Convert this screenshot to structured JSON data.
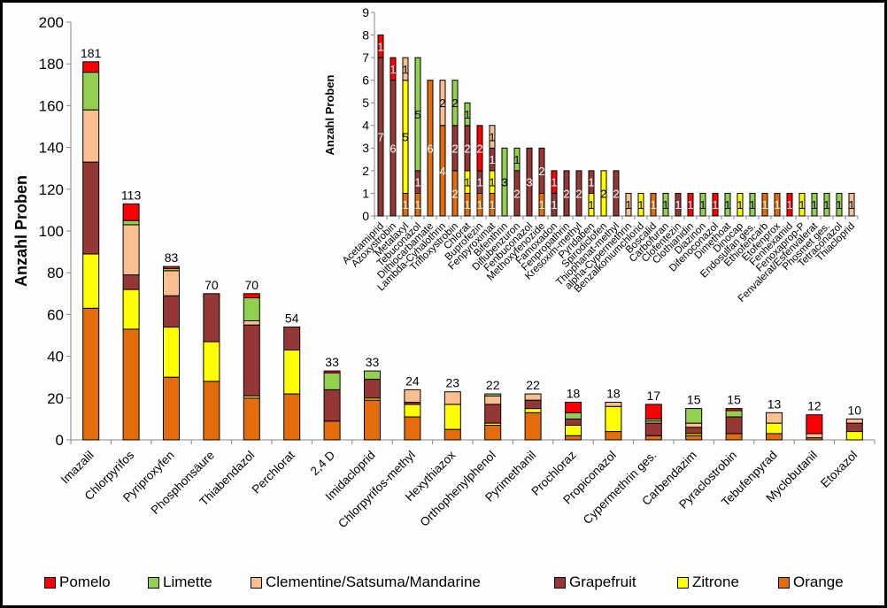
{
  "colors": {
    "Pomelo": "#ff0000",
    "Limette": "#92d050",
    "Clementine/Satsuma/Mandarine": "#fabf8f",
    "Grapefruit": "#953735",
    "Zitrone": "#ffff00",
    "Orange": "#e46c0a"
  },
  "legend": {
    "placement": "bottom",
    "entries": [
      "Pomelo",
      "Limette",
      "Clementine/Satsuma/Mandarine",
      "Grapefruit",
      "Zitrone",
      "Orange"
    ]
  },
  "chart_data": [
    {
      "type": "bar",
      "stacked": true,
      "title": "",
      "xlabel": "",
      "ylabel": "Anzahl Proben",
      "ylim": [
        0,
        200
      ],
      "yticks": [
        "0",
        "20",
        "40",
        "60",
        "80",
        "100",
        "120",
        "140",
        "160",
        "180",
        "200"
      ],
      "grid": false,
      "categories": [
        "Imazalil",
        "Chlorpyrifos",
        "Pyriproxyfen",
        "Phosphonsäure",
        "Thiabendazol",
        "Perchlorat",
        "2,4 D",
        "Imidacloprid",
        "Chlorpyrifos-methyl",
        "Hexythiazox",
        "Orthophenylphenol",
        "Pyrimethanil",
        "Prochloraz",
        "Propiconazol",
        "Cypermethrin ges.",
        "Carbendazim",
        "Pyraclostrobin",
        "Tebufenpyrad",
        "Myclobutanil",
        "Etoxazol"
      ],
      "totals": [
        "181",
        "113",
        "83",
        "70",
        "70",
        "54",
        "33",
        "33",
        "24",
        "23",
        "22",
        "22",
        "18",
        "18",
        "17",
        "15",
        "15",
        "13",
        "12",
        "10"
      ],
      "series": [
        {
          "name": "Orange",
          "values": [
            63,
            53,
            30,
            28,
            20,
            22,
            9,
            19,
            11,
            5,
            7,
            13,
            2,
            4,
            2,
            2,
            3,
            3,
            1,
            0
          ]
        },
        {
          "name": "Zitrone",
          "values": [
            26,
            19,
            24,
            19,
            1,
            21,
            0,
            1,
            6,
            12,
            1,
            2,
            5,
            12,
            0,
            1,
            0,
            5,
            0,
            4
          ]
        },
        {
          "name": "Grapefruit",
          "values": [
            44,
            7,
            15,
            23,
            34,
            11,
            15,
            9,
            1,
            0,
            9,
            4,
            3,
            0,
            6,
            3,
            8,
            0,
            0,
            4
          ]
        },
        {
          "name": "Clementine/Satsuma/Mandarine",
          "values": [
            25,
            24,
            12,
            0,
            2,
            0,
            0,
            0,
            6,
            6,
            4,
            3,
            0,
            2,
            1,
            2,
            0,
            5,
            2,
            2
          ]
        },
        {
          "name": "Limette",
          "values": [
            18,
            2,
            1,
            0,
            11,
            0,
            8,
            4,
            0,
            0,
            1,
            0,
            3,
            0,
            1,
            7,
            3,
            0,
            0,
            0
          ]
        },
        {
          "name": "Pomelo",
          "values": [
            5,
            8,
            1,
            0,
            2,
            0,
            1,
            0,
            0,
            0,
            0,
            0,
            5,
            0,
            7,
            0,
            1,
            0,
            9,
            0
          ]
        }
      ]
    },
    {
      "type": "bar",
      "stacked": true,
      "title": "",
      "xlabel": "",
      "ylabel": "Anzahl Proben",
      "ylim": [
        0,
        9
      ],
      "yticks": [
        "0",
        "1",
        "2",
        "3",
        "4",
        "5",
        "6",
        "7",
        "8",
        "9"
      ],
      "grid": false,
      "data_labels": true,
      "categories": [
        "Acetamiprid",
        "Azoxystrobin",
        "Metalaxyl",
        "Tebuconazol",
        "Dithiocarbamate",
        "Lambda-Cyhalothrin",
        "Trifloxystrobin",
        "Chlorat",
        "Buprofezin",
        "Fenpyroximat",
        "Bifenthrin",
        "Diflubenzuron",
        "Fenbuconazol",
        "Methoxyfenozide",
        "Famoxadon",
        "Fenpropathrin",
        "Kresoxim-methyl",
        "Pyridaben",
        "Spirodiclofen",
        "Thiophanat-methyl",
        "alpha-Cypermethrin",
        "Benzalkoniumchlorid",
        "Boscalid",
        "Carbofuran",
        "Clofentezin",
        "Clothianidin",
        "Diazinon",
        "Difenoconazol",
        "Dimethoat",
        "Dinocap",
        "Endosulfan ges.",
        "Ethiofencarb",
        "Etofenprox",
        "Fenhexamid",
        "Fenoxaprop-P",
        "Fenvalerat/Esfenvalerat",
        "Phosmet ges.",
        "Tetraconazol",
        "Thiacloprid"
      ],
      "series": [
        {
          "name": "Orange",
          "values": [
            0,
            0,
            1,
            1,
            6,
            4,
            2,
            1,
            1,
            1,
            0,
            0,
            0,
            1,
            0,
            0,
            0,
            0,
            0,
            0,
            0,
            0,
            1,
            0,
            0,
            0,
            0,
            0,
            0,
            0,
            0,
            1,
            1,
            0,
            0,
            0,
            0,
            0,
            0
          ]
        },
        {
          "name": "Zitrone",
          "values": [
            0,
            0,
            5,
            0,
            0,
            0,
            0,
            1,
            0,
            1,
            0,
            0,
            0,
            0,
            0,
            0,
            0,
            1,
            2,
            0,
            0,
            1,
            0,
            0,
            0,
            0,
            0,
            0,
            0,
            1,
            0,
            0,
            0,
            0,
            1,
            0,
            0,
            0,
            0
          ]
        },
        {
          "name": "Grapefruit",
          "values": [
            7,
            6,
            0,
            1,
            0,
            0,
            2,
            2,
            1,
            1,
            0,
            2,
            3,
            2,
            1,
            2,
            2,
            1,
            0,
            2,
            0,
            0,
            0,
            0,
            1,
            0,
            0,
            0,
            0,
            0,
            0,
            0,
            0,
            0,
            0,
            0,
            0,
            0,
            0
          ]
        },
        {
          "name": "Clementine/Satsuma/Mandarine",
          "values": [
            0,
            0,
            1,
            0,
            0,
            2,
            0,
            0,
            0,
            1,
            0,
            0,
            0,
            0,
            0,
            0,
            0,
            0,
            0,
            0,
            1,
            0,
            0,
            0,
            0,
            0,
            0,
            0,
            0,
            0,
            0,
            0,
            0,
            0,
            0,
            0,
            0,
            0,
            1
          ]
        },
        {
          "name": "Limette",
          "values": [
            0,
            0,
            0,
            5,
            0,
            0,
            2,
            1,
            0,
            0,
            3,
            1,
            0,
            0,
            0,
            0,
            0,
            0,
            0,
            0,
            0,
            0,
            0,
            1,
            0,
            0,
            1,
            0,
            1,
            0,
            1,
            0,
            0,
            0,
            0,
            1,
            1,
            1,
            0
          ]
        },
        {
          "name": "Pomelo",
          "values": [
            1,
            1,
            0,
            0,
            0,
            0,
            0,
            0,
            2,
            0,
            0,
            0,
            0,
            0,
            1,
            0,
            0,
            0,
            0,
            0,
            0,
            0,
            0,
            0,
            0,
            1,
            0,
            1,
            0,
            0,
            0,
            0,
            0,
            1,
            0,
            0,
            0,
            0,
            0
          ]
        }
      ]
    }
  ]
}
